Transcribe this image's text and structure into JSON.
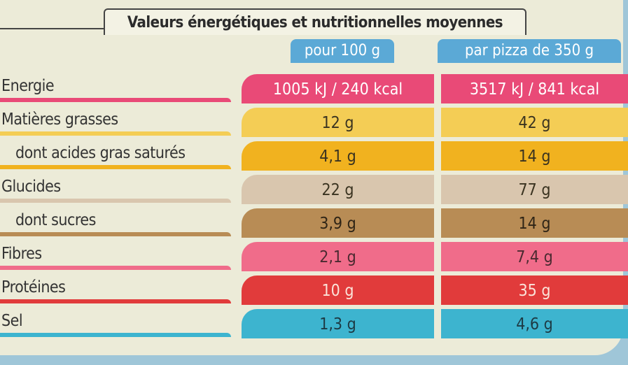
{
  "title": "Valeurs énergétiques et nutritionnelles moyennes",
  "columns": [
    "pour 100 g",
    "par pizza de 350 g"
  ],
  "rows": [
    {
      "label": "Energie",
      "values": [
        "1005 kJ / 240 kcal",
        "3517 kJ / 841 kcal"
      ]
    },
    {
      "label": "Matières grasses",
      "values": [
        "12 g",
        "42 g"
      ]
    },
    {
      "label": "dont acides gras saturés",
      "values": [
        "4,1 g",
        "14 g"
      ]
    },
    {
      "label": "Glucides",
      "values": [
        "22 g",
        "77 g"
      ]
    },
    {
      "label": "dont sucres",
      "values": [
        "3,9 g",
        "14 g"
      ]
    },
    {
      "label": "Fibres",
      "values": [
        "2,1 g",
        "7,4 g"
      ]
    },
    {
      "label": "Protéines",
      "values": [
        "10 g",
        "35 g"
      ]
    },
    {
      "label": "Sel",
      "values": [
        "1,3 g",
        "4,6 g"
      ]
    }
  ]
}
